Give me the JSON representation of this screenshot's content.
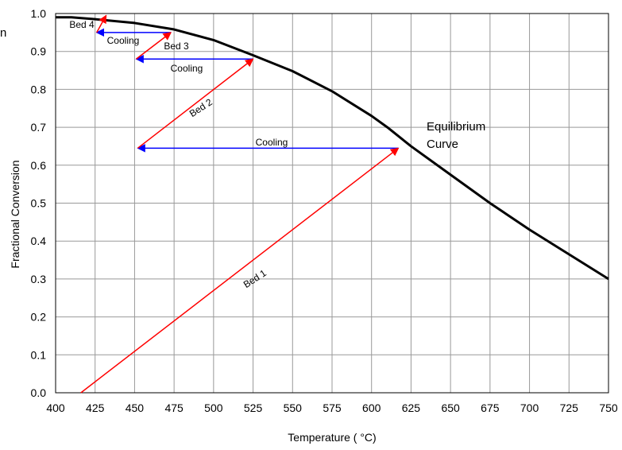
{
  "chart_data": {
    "type": "line",
    "title": "",
    "stray_label": "n",
    "xlabel": "Temperature ( °C)",
    "ylabel": "Fractional Conversion",
    "xlim": [
      400,
      750
    ],
    "ylim": [
      0.0,
      1.0
    ],
    "xticks": [
      400,
      425,
      450,
      475,
      500,
      525,
      550,
      575,
      600,
      625,
      650,
      675,
      700,
      725,
      750
    ],
    "yticks": [
      0.0,
      0.1,
      0.2,
      0.3,
      0.4,
      0.5,
      0.6,
      0.7,
      0.8,
      0.9,
      1.0
    ],
    "ytick_labels": [
      "0.0",
      "0.1",
      "0.2",
      "0.3",
      "0.4",
      "0.5",
      "0.6",
      "0.7",
      "0.8",
      "0.9",
      "1.0"
    ],
    "grid": true,
    "equilibrium": {
      "label_line1": "Equilibrium",
      "label_line2": "Curve",
      "color": "#000000",
      "x": [
        400,
        410,
        425,
        450,
        475,
        500,
        525,
        550,
        575,
        600,
        610,
        625,
        650,
        675,
        700,
        725,
        750
      ],
      "y": [
        0.99,
        0.99,
        0.985,
        0.975,
        0.958,
        0.93,
        0.89,
        0.848,
        0.795,
        0.73,
        0.7,
        0.65,
        0.575,
        0.5,
        0.43,
        0.365,
        0.3
      ]
    },
    "beds": [
      {
        "label": "Bed 1",
        "x": [
          416,
          617
        ],
        "y": [
          0.0,
          0.645
        ],
        "color": "#ff0000"
      },
      {
        "label": "Bed 2",
        "x": [
          452,
          525
        ],
        "y": [
          0.645,
          0.88
        ],
        "color": "#ff0000"
      },
      {
        "label": "Bed 3",
        "x": [
          451,
          473
        ],
        "y": [
          0.88,
          0.95
        ],
        "color": "#ff0000"
      },
      {
        "label": "Bed 4",
        "x": [
          426,
          432
        ],
        "y": [
          0.95,
          0.995
        ],
        "color": "#ff0000"
      }
    ],
    "cooling": [
      {
        "label": "Cooling",
        "x": [
          617,
          452
        ],
        "y": [
          0.645,
          0.645
        ],
        "color": "#0000ff"
      },
      {
        "label": "Cooling",
        "x": [
          525,
          451
        ],
        "y": [
          0.88,
          0.88
        ],
        "color": "#0000ff"
      },
      {
        "label": "Cooling",
        "x": [
          473,
          426
        ],
        "y": [
          0.95,
          0.95
        ],
        "color": "#0000ff"
      }
    ]
  }
}
